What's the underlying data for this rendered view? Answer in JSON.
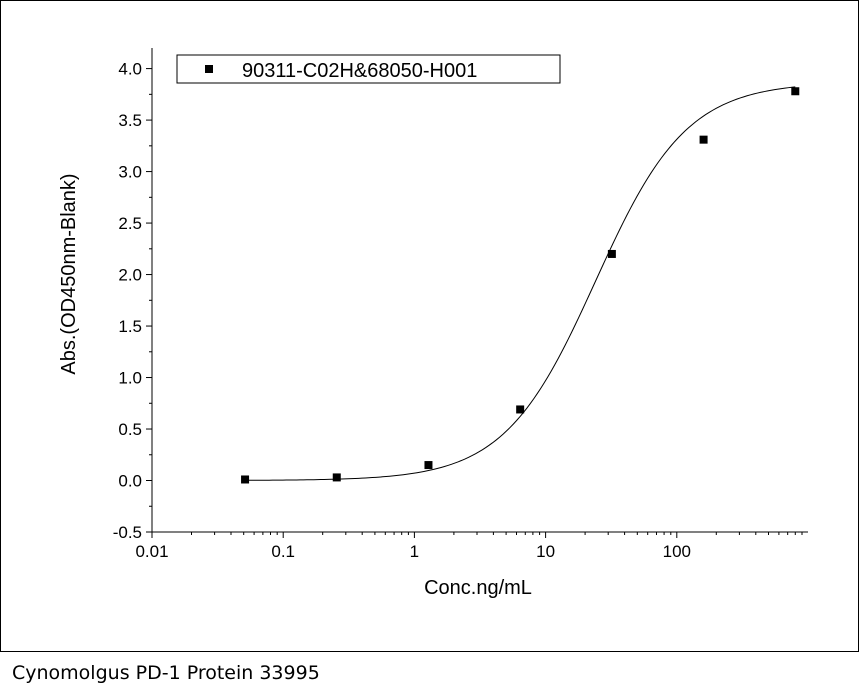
{
  "caption": "Cynomolgus PD-1 Protein 33995",
  "chart_data": {
    "type": "scatter",
    "xscale": "log",
    "xlim": [
      0.01,
      1000
    ],
    "ylim": [
      -0.5,
      4.2
    ],
    "xlabel": "Conc.ng/mL",
    "ylabel": "Abs.(OD450nm-Blank)",
    "x_tick_labels": [
      "0.01",
      "0.1",
      "1",
      "10",
      "100"
    ],
    "x_ticks": [
      0.01,
      0.1,
      1,
      10,
      100
    ],
    "y_tick_labels": [
      "-0.5",
      "0.0",
      "0.5",
      "1.0",
      "1.5",
      "2.0",
      "2.5",
      "3.0",
      "3.5",
      "4.0"
    ],
    "y_ticks": [
      -0.5,
      0.0,
      0.5,
      1.0,
      1.5,
      2.0,
      2.5,
      3.0,
      3.5,
      4.0
    ],
    "legend_position": "top-left",
    "series": [
      {
        "name": "90311-C02H&68050-H001",
        "marker": "square",
        "color": "#000000",
        "x": [
          0.0512,
          0.256,
          1.28,
          6.4,
          32,
          160,
          800
        ],
        "y": [
          0.01,
          0.03,
          0.15,
          0.69,
          2.2,
          3.31,
          3.78
        ]
      }
    ],
    "fit_curve": {
      "type": "4PL",
      "bottom": 0.0,
      "top": 3.87,
      "ec50": 24.0,
      "hill": 1.25,
      "color": "#000000"
    }
  }
}
